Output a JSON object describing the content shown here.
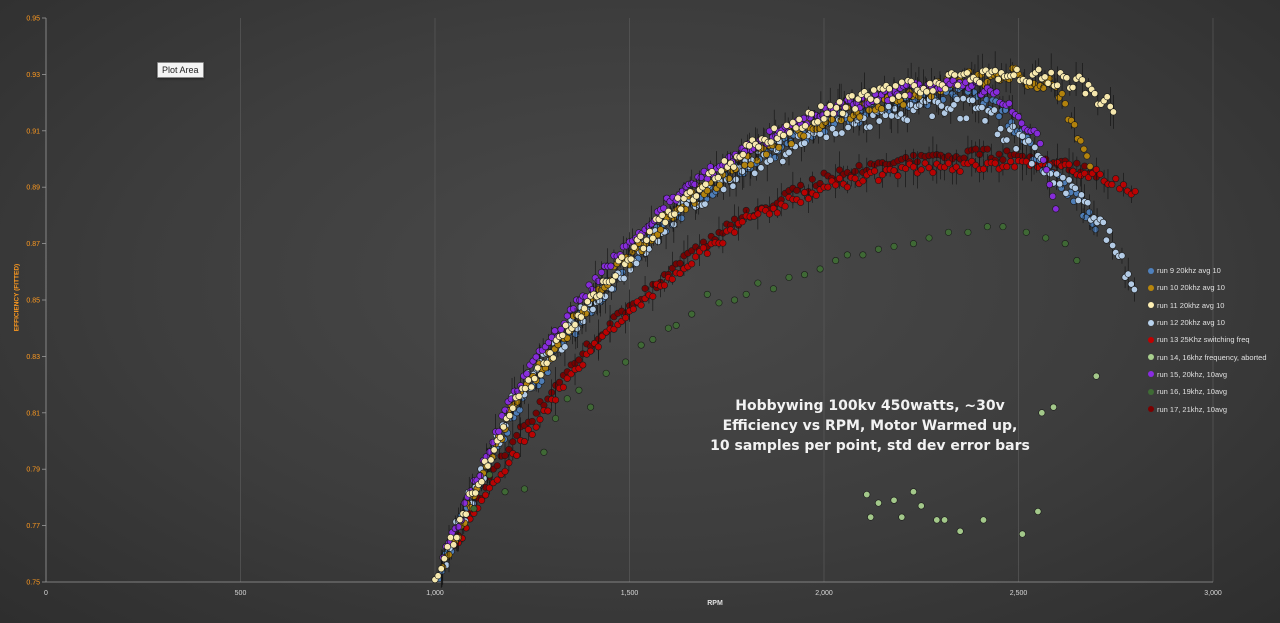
{
  "chart_data": {
    "type": "scatter",
    "title": "Hobbywing 100kv 450watts, ~30v Efficiency vs RPM, Motor Warmed up, 10 samples per point, std dev error bars",
    "title_lines": [
      "Hobbywing 100kv 450watts, ~30v",
      "Efficiency vs RPM, Motor Warmed up,",
      "10 samples per point, std dev error bars"
    ],
    "xlabel": "RPM",
    "ylabel": "EFFICIENCY (FITTED)",
    "xlim": [
      0,
      3000
    ],
    "ylim": [
      0.75,
      0.95
    ],
    "x_ticks": [
      "0",
      "500",
      "1,000",
      "1,500",
      "2,000",
      "2,500",
      "3,000"
    ],
    "y_ticks": [
      "0.75",
      "0.77",
      "0.79",
      "0.81",
      "0.83",
      "0.85",
      "0.87",
      "0.89",
      "0.91",
      "0.93",
      "0.95"
    ],
    "grid": "vertical",
    "legend_position": "right",
    "tooltip": "Plot Area",
    "series": [
      {
        "name": "run 9 20khz avg 10",
        "color": "#4f81bd"
      },
      {
        "name": "run 10 20khz avg 10",
        "color": "#b8860b"
      },
      {
        "name": "run 11 20khz avg 10",
        "color": "#fff0b3"
      },
      {
        "name": "run 12 20khz avg 10",
        "color": "#b9d3ee"
      },
      {
        "name": "run 13 25Khz switching freq",
        "color": "#c00000"
      },
      {
        "name": "run 14, 16khz frequency, aborted",
        "color": "#a9d08e"
      },
      {
        "name": "run 15, 20khz, 10avg",
        "color": "#8a2be2"
      },
      {
        "name": "run 16, 19khz, 10avg",
        "color": "#3f6b35"
      },
      {
        "name": "run 17, 21khz, 10avg",
        "color": "#7a0000"
      }
    ],
    "curves": [
      {
        "series": 0,
        "from": 1010,
        "to": 2700,
        "points": [
          [
            1010,
            0.754
          ],
          [
            1200,
            0.81
          ],
          [
            1400,
            0.848
          ],
          [
            1600,
            0.878
          ],
          [
            1800,
            0.898
          ],
          [
            2000,
            0.912
          ],
          [
            2200,
            0.92
          ],
          [
            2350,
            0.924
          ],
          [
            2450,
            0.918
          ],
          [
            2550,
            0.9
          ],
          [
            2650,
            0.885
          ],
          [
            2700,
            0.875
          ]
        ],
        "noise": 0.003
      },
      {
        "series": 1,
        "from": 1020,
        "to": 2690,
        "points": [
          [
            1020,
            0.755
          ],
          [
            1200,
            0.812
          ],
          [
            1400,
            0.85
          ],
          [
            1600,
            0.88
          ],
          [
            1800,
            0.9
          ],
          [
            2000,
            0.914
          ],
          [
            2200,
            0.922
          ],
          [
            2350,
            0.928
          ],
          [
            2500,
            0.93
          ],
          [
            2600,
            0.925
          ],
          [
            2690,
            0.895
          ]
        ],
        "noise": 0.003
      },
      {
        "series": 2,
        "from": 1000,
        "to": 2750,
        "points": [
          [
            1000,
            0.751
          ],
          [
            1200,
            0.813
          ],
          [
            1400,
            0.85
          ],
          [
            1600,
            0.881
          ],
          [
            1800,
            0.903
          ],
          [
            2000,
            0.917
          ],
          [
            2200,
            0.925
          ],
          [
            2400,
            0.93
          ],
          [
            2550,
            0.93
          ],
          [
            2650,
            0.927
          ],
          [
            2750,
            0.917
          ]
        ],
        "noise": 0.003
      },
      {
        "series": 3,
        "from": 1030,
        "to": 2800,
        "points": [
          [
            1030,
            0.76
          ],
          [
            1200,
            0.814
          ],
          [
            1400,
            0.848
          ],
          [
            1600,
            0.878
          ],
          [
            1800,
            0.897
          ],
          [
            2000,
            0.91
          ],
          [
            2200,
            0.917
          ],
          [
            2400,
            0.918
          ],
          [
            2550,
            0.9
          ],
          [
            2700,
            0.88
          ],
          [
            2800,
            0.855
          ]
        ],
        "noise": 0.004
      },
      {
        "series": 4,
        "from": 1060,
        "to": 2800,
        "points": [
          [
            1060,
            0.765
          ],
          [
            1200,
            0.795
          ],
          [
            1400,
            0.832
          ],
          [
            1600,
            0.858
          ],
          [
            1800,
            0.878
          ],
          [
            2000,
            0.89
          ],
          [
            2200,
            0.896
          ],
          [
            2400,
            0.898
          ],
          [
            2600,
            0.897
          ],
          [
            2700,
            0.895
          ],
          [
            2800,
            0.888
          ]
        ],
        "noise": 0.002
      },
      {
        "series": 6,
        "from": 1020,
        "to": 2600,
        "points": [
          [
            1020,
            0.758
          ],
          [
            1200,
            0.817
          ],
          [
            1400,
            0.855
          ],
          [
            1600,
            0.885
          ],
          [
            1800,
            0.904
          ],
          [
            2000,
            0.917
          ],
          [
            2200,
            0.924
          ],
          [
            2350,
            0.928
          ],
          [
            2450,
            0.922
          ],
          [
            2550,
            0.908
          ],
          [
            2600,
            0.88
          ]
        ],
        "noise": 0.002
      },
      {
        "series": 8,
        "from": 1050,
        "to": 2700,
        "points": [
          [
            1050,
            0.765
          ],
          [
            1200,
            0.8
          ],
          [
            1400,
            0.835
          ],
          [
            1600,
            0.86
          ],
          [
            1800,
            0.88
          ],
          [
            2000,
            0.893
          ],
          [
            2200,
            0.899
          ],
          [
            2400,
            0.902
          ],
          [
            2550,
            0.9
          ],
          [
            2700,
            0.895
          ]
        ],
        "noise": 0.002
      }
    ],
    "scatter_points": [
      {
        "series": 5,
        "x": [
          2110,
          2120,
          2140,
          2180,
          2200,
          2230,
          2250,
          2290,
          2310,
          2350,
          2410,
          2510,
          2550,
          2560,
          2590,
          2700
        ],
        "y": [
          0.781,
          0.773,
          0.778,
          0.779,
          0.773,
          0.782,
          0.777,
          0.772,
          0.772,
          0.768,
          0.772,
          0.767,
          0.775,
          0.81,
          0.812,
          0.823
        ]
      },
      {
        "series": 7,
        "x": [
          1100,
          1140,
          1180,
          1230,
          1280,
          1310,
          1340,
          1370,
          1400,
          1440,
          1490,
          1530,
          1560,
          1600,
          1620,
          1660,
          1700,
          1730,
          1770,
          1800,
          1830,
          1870,
          1910,
          1950,
          1990,
          2030,
          2060,
          2100,
          2140,
          2180,
          2230,
          2270,
          2320,
          2370,
          2420,
          2460,
          2520,
          2570,
          2620,
          2650
        ],
        "y": [
          0.776,
          0.788,
          0.782,
          0.783,
          0.796,
          0.808,
          0.815,
          0.818,
          0.812,
          0.824,
          0.828,
          0.834,
          0.836,
          0.84,
          0.841,
          0.845,
          0.852,
          0.849,
          0.85,
          0.852,
          0.856,
          0.854,
          0.858,
          0.859,
          0.861,
          0.864,
          0.866,
          0.866,
          0.868,
          0.869,
          0.87,
          0.872,
          0.874,
          0.874,
          0.876,
          0.876,
          0.874,
          0.872,
          0.87,
          0.864
        ]
      }
    ]
  }
}
